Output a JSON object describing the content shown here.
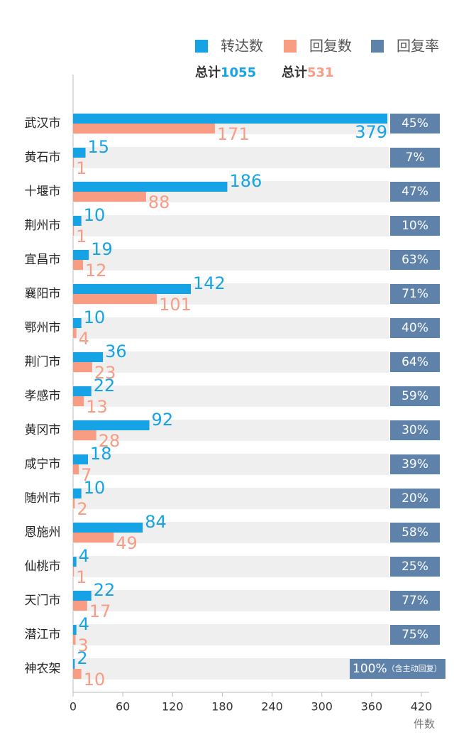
{
  "chart_data": {
    "type": "bar",
    "orientation": "horizontal",
    "categories": [
      "武汉市",
      "黄石市",
      "十堰市",
      "荆州市",
      "宜昌市",
      "襄阳市",
      "鄂州市",
      "荆门市",
      "孝感市",
      "黄冈市",
      "咸宁市",
      "随州市",
      "恩施州",
      "仙桃市",
      "天门市",
      "潜江市",
      "神农架"
    ],
    "series": [
      {
        "name": "转达数",
        "color": "#16a3e6",
        "values": [
          379,
          15,
          186,
          10,
          19,
          142,
          10,
          36,
          22,
          92,
          18,
          10,
          84,
          4,
          22,
          4,
          2
        ]
      },
      {
        "name": "回复数",
        "color": "#f89c84",
        "values": [
          171,
          1,
          88,
          1,
          12,
          101,
          4,
          23,
          13,
          28,
          7,
          2,
          49,
          1,
          17,
          3,
          10
        ]
      }
    ],
    "rate": {
      "name": "回复率",
      "color": "#5f82aa",
      "values": [
        45,
        7,
        47,
        10,
        63,
        71,
        40,
        64,
        59,
        30,
        39,
        20,
        58,
        25,
        77,
        75,
        100
      ],
      "value_labels": [
        "45%",
        "7%",
        "47%",
        "10%",
        "63%",
        "71%",
        "40%",
        "64%",
        "59%",
        "30%",
        "39%",
        "20%",
        "58%",
        "25%",
        "77%",
        "75%",
        "100%"
      ],
      "note": "（含主动回复）"
    },
    "total_label": "总计",
    "totals": [
      1055,
      531
    ],
    "x_label": "件数",
    "xlim": [
      0,
      420
    ],
    "xticks": [
      0,
      60,
      120,
      180,
      240,
      300,
      360,
      420
    ]
  }
}
